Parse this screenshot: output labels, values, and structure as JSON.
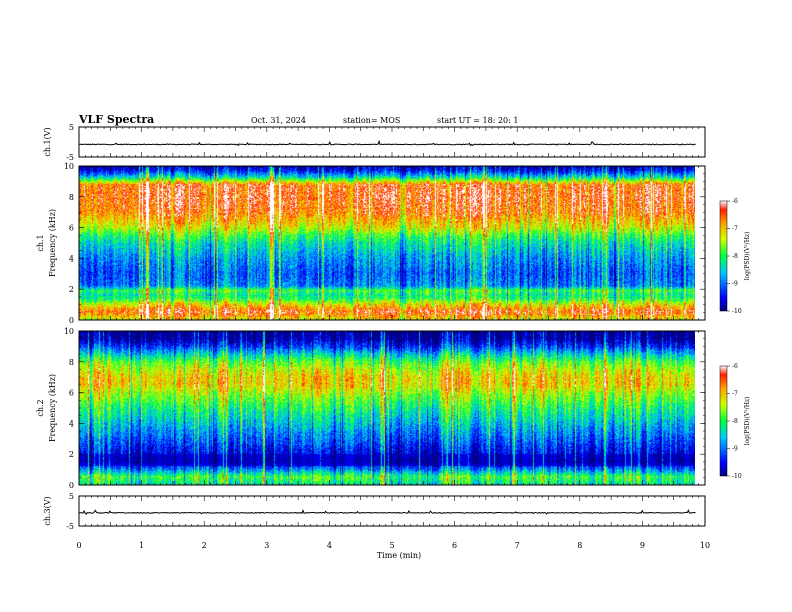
{
  "header": {
    "title": "VLF Spectra",
    "date": "Oct. 31, 2024",
    "station": "station= MOS",
    "start_ut": "start  UT =   18: 20: 1"
  },
  "chart_data": [
    {
      "type": "line",
      "panel": "ch1-waveform",
      "ylabel": "ch.1(V)",
      "ylim": [
        -5,
        5
      ],
      "yticks": [
        "5",
        "-5"
      ],
      "xlim": [
        0,
        10
      ],
      "trace_level": -0.8,
      "trace_color": "#000000"
    },
    {
      "type": "heatmap",
      "panel": "ch1-spectrogram",
      "ylabel_top": "ch.1",
      "ylabel": "Frequency (kHz)",
      "ylim": [
        0,
        10
      ],
      "yticks": [
        "0",
        "2",
        "4",
        "6",
        "8",
        "10"
      ],
      "xlim": [
        0,
        9.85
      ],
      "colorbar": {
        "label": "log(PSD)(V²/Hz)",
        "range": [
          -10,
          -6
        ],
        "ticks": [
          "-6",
          "-7",
          "-8",
          "-9",
          "-10"
        ]
      },
      "profile_freqs_khz": [
        0,
        0.5,
        1.0,
        1.5,
        1.9,
        2.2,
        3.0,
        4.0,
        5.0,
        5.5,
        6.0,
        7.0,
        8.0,
        8.8,
        9.3,
        9.7,
        10
      ],
      "profile_log_psd": [
        -7.2,
        -6.4,
        -7.2,
        -8.3,
        -7.9,
        -8.9,
        -9.1,
        -8.8,
        -8.3,
        -7.9,
        -7.3,
        -6.6,
        -6.4,
        -6.5,
        -8.4,
        -9.4,
        -9.8
      ]
    },
    {
      "type": "heatmap",
      "panel": "ch2-spectrogram",
      "ylabel_top": "ch.2",
      "ylabel": "Frequency (kHz)",
      "ylim": [
        0,
        10
      ],
      "yticks": [
        "0",
        "2",
        "4",
        "6",
        "8",
        "10"
      ],
      "xlim": [
        0,
        9.85
      ],
      "colorbar": {
        "label": "log(PSD)(V²/Hz)",
        "range": [
          -10,
          -6
        ],
        "ticks": [
          "-6",
          "-7",
          "-8",
          "-9",
          "-10"
        ]
      },
      "profile_freqs_khz": [
        0,
        0.5,
        1.0,
        1.5,
        2.0,
        3.0,
        4.0,
        5.0,
        6.0,
        6.5,
        7.0,
        7.5,
        8.0,
        8.5,
        9.0,
        9.5,
        10
      ],
      "profile_log_psd": [
        -8.2,
        -7.8,
        -8.9,
        -9.7,
        -9.5,
        -9.0,
        -8.5,
        -8.0,
        -7.4,
        -7.0,
        -7.0,
        -7.3,
        -7.7,
        -8.4,
        -9.2,
        -9.8,
        -9.9
      ]
    },
    {
      "type": "line",
      "panel": "ch3-waveform",
      "ylabel": "ch.3(V)",
      "ylim": [
        -5,
        5
      ],
      "yticks": [
        "5",
        "-5"
      ],
      "xlim": [
        0,
        10
      ],
      "trace_level": -0.6,
      "trace_color": "#000000"
    }
  ],
  "xaxis": {
    "label": "Time  (min)",
    "ticks": [
      "0",
      "1",
      "2",
      "3",
      "4",
      "5",
      "6",
      "7",
      "8",
      "9",
      "10"
    ],
    "range": [
      0,
      10
    ]
  },
  "colors": {
    "axis": "#000000",
    "background": "#ffffff"
  }
}
